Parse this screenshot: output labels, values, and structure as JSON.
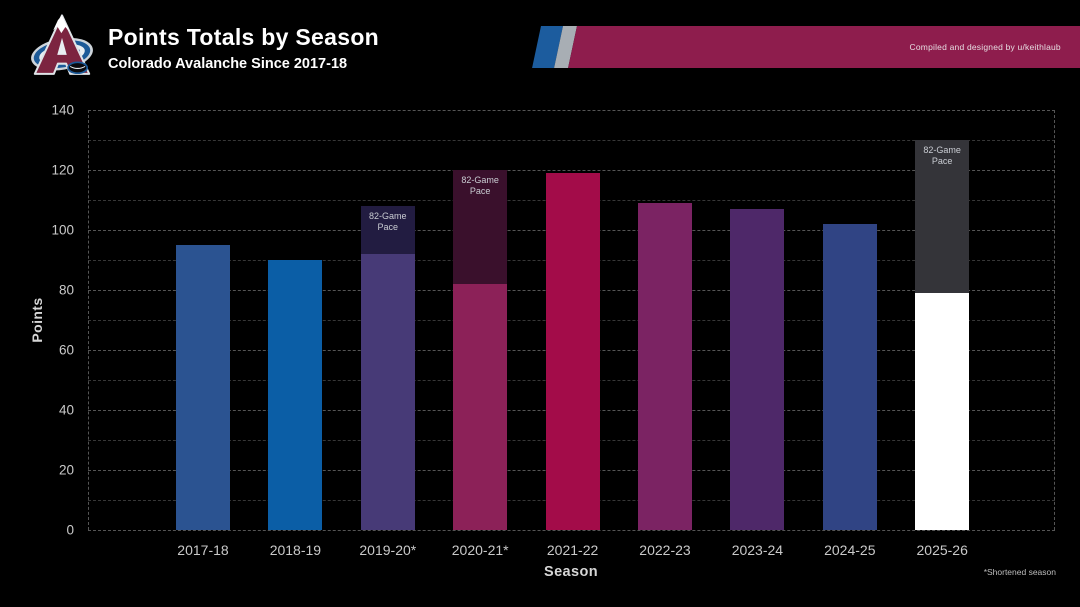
{
  "header": {
    "title": "Points Totals by Season",
    "subtitle": "Colorado Avalanche Since 2017-18",
    "logo": "colorado-avalanche-logo",
    "banner_credit": "Compiled and designed by u/keithlaub",
    "banner_colors": {
      "blue": "#1c5c9e",
      "silver": "#a8aeb4",
      "burgundy": "#8e1d4d"
    }
  },
  "chart_data": {
    "type": "bar",
    "title": "Points Totals by Season",
    "xlabel": "Season",
    "ylabel": "Points",
    "ylim": [
      0,
      140
    ],
    "y_major_ticks": [
      0,
      20,
      40,
      60,
      80,
      100,
      120,
      140
    ],
    "y_minor_ticks": [
      10,
      30,
      50,
      70,
      90,
      110,
      130
    ],
    "grid": "horizontal dashed, dashed plot border left/right/top/bottom",
    "legend": "none",
    "pace_label": "82-Game Pace",
    "footnote": "*Shortened season",
    "categories": [
      "2017-18",
      "2018-19",
      "2019-20*",
      "2020-21*",
      "2021-22",
      "2022-23",
      "2023-24",
      "2024-25",
      "2025-26"
    ],
    "seasons": [
      {
        "season": "2017-18",
        "points": 95,
        "color": "#2b5391"
      },
      {
        "season": "2018-19",
        "points": 90,
        "color": "#0b5ea6"
      },
      {
        "season": "2019-20*",
        "points": 92,
        "pace_82_games": 108,
        "color": "#473a77",
        "pace_color": "#221c41",
        "shortened": true
      },
      {
        "season": "2020-21*",
        "points": 82,
        "pace_82_games": 120,
        "color": "#8c2158",
        "pace_color": "#3a102c",
        "shortened": true
      },
      {
        "season": "2021-22",
        "points": 119,
        "color": "#a30c49"
      },
      {
        "season": "2022-23",
        "points": 109,
        "color": "#7b2363"
      },
      {
        "season": "2023-24",
        "points": 107,
        "color": "#4e2869"
      },
      {
        "season": "2024-25",
        "points": 102,
        "color": "#304484"
      },
      {
        "season": "2025-26",
        "points": 79,
        "pace_82_games": 130,
        "color": "#ffffff",
        "pace_color": "#343439",
        "in_progress": true
      }
    ]
  }
}
